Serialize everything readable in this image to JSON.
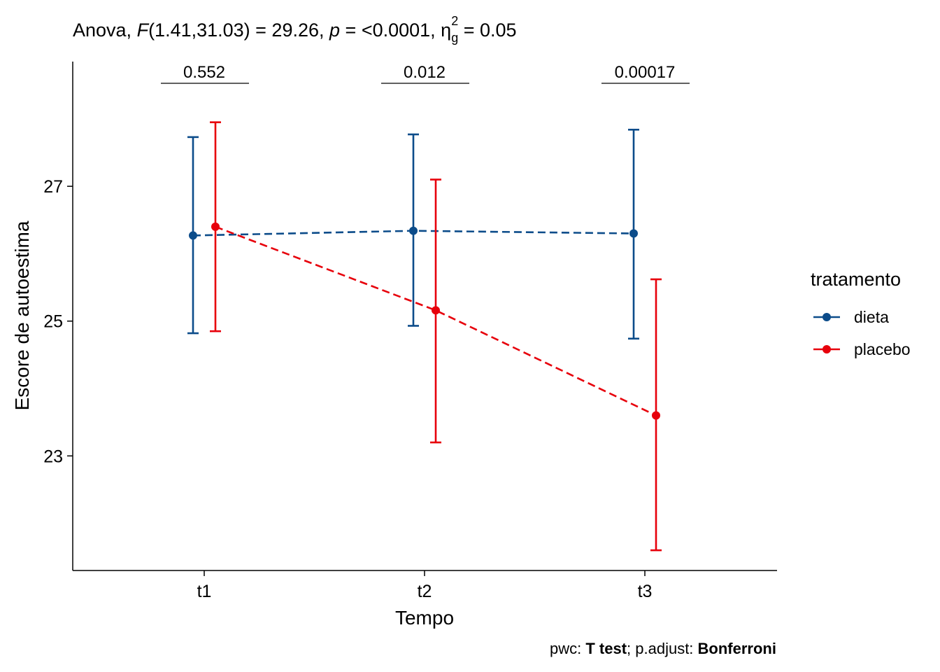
{
  "chart_data": {
    "type": "line",
    "title": {
      "prefix": "Anova, ",
      "f_symbol": "F",
      "f_value": "(1.41,31.03) = 29.26, ",
      "p_symbol": "p",
      "p_value": " = <0.0001, ",
      "eta_symbol": "η",
      "eta_sup": "2",
      "eta_sub": "g",
      "eta_value": " = 0.05"
    },
    "xlabel": "Tempo",
    "ylabel": "Escore de autoestima",
    "categories": [
      "t1",
      "t2",
      "t3"
    ],
    "y_ticks": [
      23,
      25,
      27
    ],
    "ylim": [
      21.3,
      28.85
    ],
    "grid": false,
    "legend": {
      "title": "tratamento",
      "position": "right"
    },
    "series": [
      {
        "name": "dieta",
        "color": "#0C4C8A",
        "mean": [
          26.27,
          26.34,
          26.3
        ],
        "lower": [
          24.82,
          24.93,
          24.74
        ],
        "upper": [
          27.73,
          27.77,
          27.84
        ]
      },
      {
        "name": "placebo",
        "color": "#E7000B",
        "mean": [
          26.4,
          25.16,
          23.6
        ],
        "lower": [
          24.85,
          23.2,
          21.6
        ],
        "upper": [
          27.95,
          27.1,
          25.62
        ]
      }
    ],
    "pairwise": [
      {
        "category": "t1",
        "label": "0.552"
      },
      {
        "category": "t2",
        "label": "0.012"
      },
      {
        "category": "t3",
        "label": "0.00017"
      }
    ],
    "caption": {
      "part1": "pwc: ",
      "method": "T test",
      "part2": "; p.adjust: ",
      "adjust": "Bonferroni"
    }
  }
}
